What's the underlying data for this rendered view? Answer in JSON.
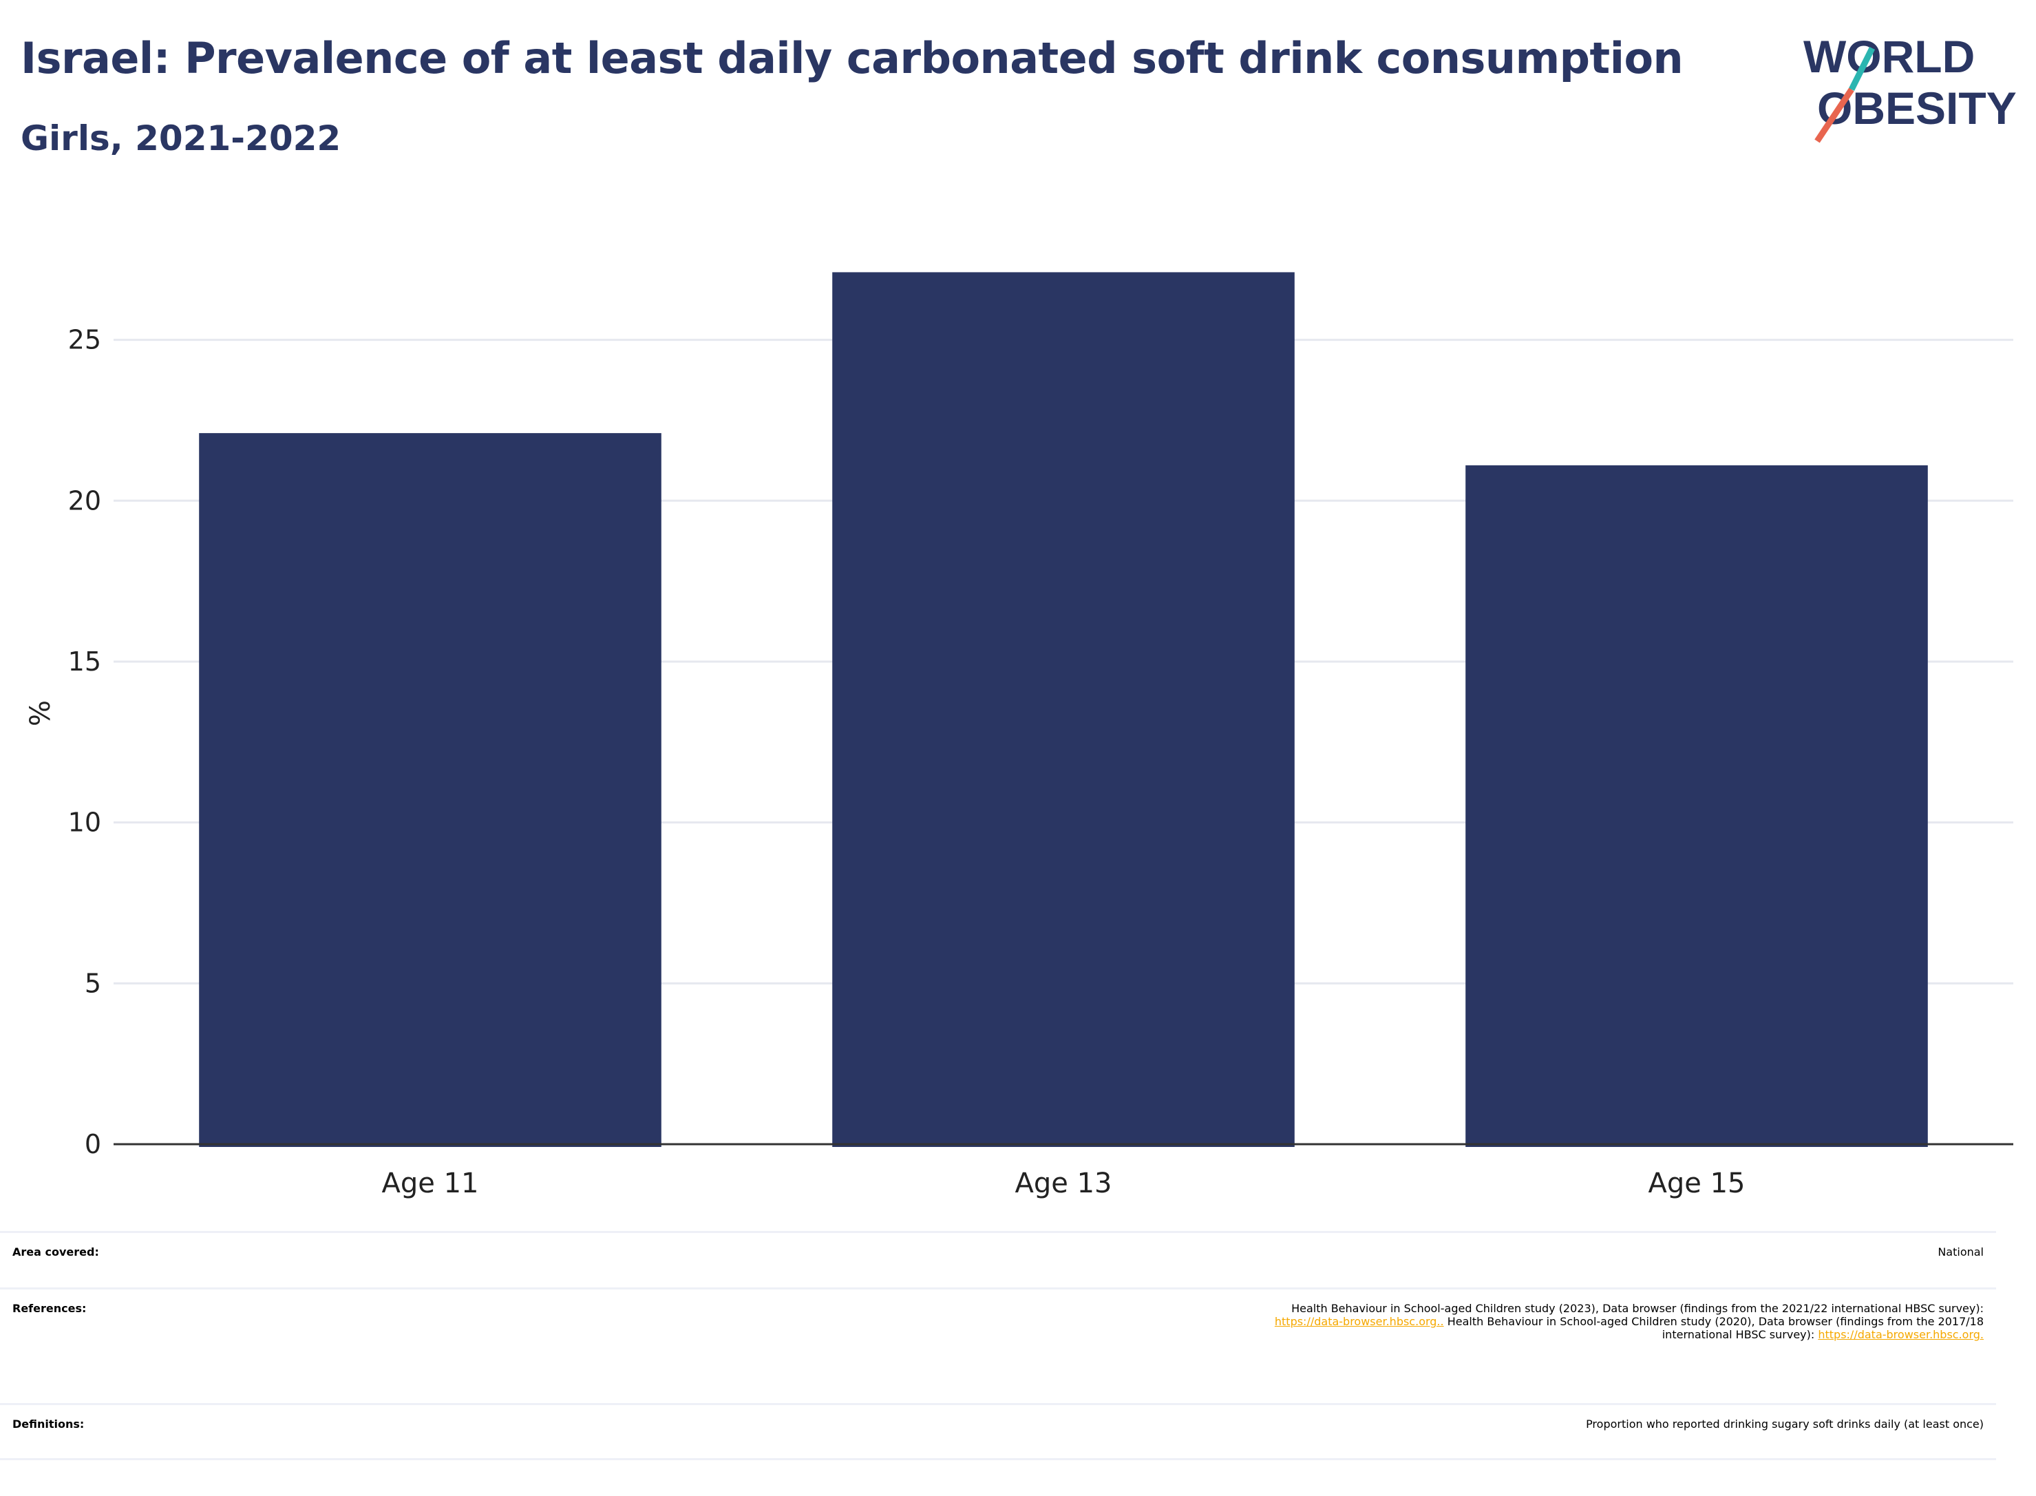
{
  "header": {
    "title": "Israel: Prevalence of at least daily carbonated soft drink consumption",
    "subtitle": "Girls, 2021-2022"
  },
  "logo": {
    "line1": "WORLD",
    "line2": "OBESITY",
    "colors": {
      "text": "#2a3663",
      "slash_top": "#2bb5b0",
      "slash_bottom": "#e8654f"
    }
  },
  "chart_data": {
    "type": "bar",
    "categories": [
      "Age 11",
      "Age 13",
      "Age 15"
    ],
    "values": [
      22.1,
      27.1,
      21.1
    ],
    "ylabel": "%",
    "xlabel": "",
    "ylim": [
      0,
      28.5
    ],
    "yticks": [
      0,
      5,
      10,
      15,
      20,
      25
    ],
    "grid": true,
    "bar_color": "#2a3663"
  },
  "info": {
    "area_label": "Area covered:",
    "area_value": "National",
    "references_label": "References:",
    "references_line1": "Health Behaviour in School-aged Children study (2023), Data browser (findings from the 2021/22 international HBSC survey):",
    "references_link1": "https://data-browser.hbsc.org..",
    "references_line2_rest": " Health Behaviour in School-aged Children study (2020), Data browser (findings from the 2017/18",
    "references_line3": "international HBSC survey): ",
    "references_link2": "https://data-browser.hbsc.org.",
    "definitions_label": "Definitions:",
    "definitions_value": "Proportion who reported drinking sugary soft drinks daily (at least once)"
  },
  "colors": {
    "accent": "#2a3663",
    "link": "#f5a800",
    "grid": "#e6e8ef"
  }
}
